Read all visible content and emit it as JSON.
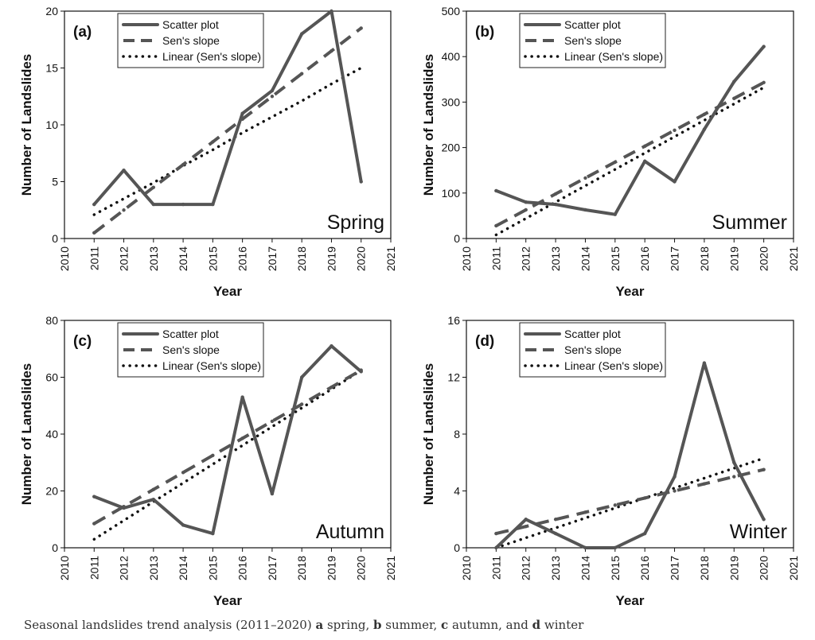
{
  "chart_data": [
    {
      "type": "line",
      "panel_label": "(a)",
      "season_label": "Spring",
      "xlabel": "Year",
      "ylabel": "Number of Landslides",
      "xlim": [
        2010,
        2021
      ],
      "ylim": [
        0,
        20
      ],
      "xticks": [
        "2010",
        "2011",
        "2012",
        "2013",
        "2014",
        "2015",
        "2016",
        "2017",
        "2018",
        "2019",
        "2020",
        "2021"
      ],
      "yticks": [
        "0",
        "5",
        "10",
        "15",
        "20"
      ],
      "x": [
        2011,
        2012,
        2013,
        2014,
        2015,
        2016,
        2017,
        2018,
        2019,
        2020
      ],
      "series": [
        {
          "name": "Scatter plot",
          "style": "solid",
          "values": [
            3,
            6,
            3,
            3,
            3,
            11,
            13,
            18,
            20,
            5
          ]
        },
        {
          "name": "Sen's slope",
          "style": "dashed",
          "values": [
            0.5,
            2.5,
            4.5,
            6.5,
            8.5,
            10.5,
            12.5,
            14.5,
            16.5,
            18.5
          ]
        },
        {
          "name": "Linear (Sen's slope)",
          "style": "dotted",
          "values": [
            2.1,
            3.5,
            4.9,
            6.4,
            7.8,
            9.3,
            10.7,
            12.1,
            13.6,
            15.0
          ]
        }
      ],
      "legend_position": "top-left"
    },
    {
      "type": "line",
      "panel_label": "(b)",
      "season_label": "Summer",
      "xlabel": "Year",
      "ylabel": "Number of Landslides",
      "xlim": [
        2010,
        2021
      ],
      "ylim": [
        0,
        500
      ],
      "xticks": [
        "2010",
        "2011",
        "2012",
        "2013",
        "2014",
        "2015",
        "2016",
        "2017",
        "2018",
        "2019",
        "2020",
        "2021"
      ],
      "yticks": [
        "0",
        "100",
        "200",
        "300",
        "400",
        "500"
      ],
      "x": [
        2011,
        2012,
        2013,
        2014,
        2015,
        2016,
        2017,
        2018,
        2019,
        2020
      ],
      "series": [
        {
          "name": "Scatter plot",
          "style": "solid",
          "values": [
            105,
            80,
            75,
            63,
            53,
            170,
            125,
            240,
            345,
            422
          ]
        },
        {
          "name": "Sen's slope",
          "style": "dashed",
          "values": [
            28,
            63,
            98,
            133,
            168,
            203,
            238,
            273,
            308,
            343
          ]
        },
        {
          "name": "Linear (Sen's slope)",
          "style": "dotted",
          "values": [
            8,
            44,
            80,
            116,
            152,
            188,
            224,
            260,
            296,
            332
          ]
        }
      ],
      "legend_position": "top-left"
    },
    {
      "type": "line",
      "panel_label": "(c)",
      "season_label": "Autumn",
      "xlabel": "Year",
      "ylabel": "Number of Landslides",
      "xlim": [
        2010,
        2021
      ],
      "ylim": [
        0,
        80
      ],
      "xticks": [
        "2010",
        "2011",
        "2012",
        "2013",
        "2014",
        "2015",
        "2016",
        "2017",
        "2018",
        "2019",
        "2020",
        "2021"
      ],
      "yticks": [
        "0",
        "20",
        "40",
        "60",
        "80"
      ],
      "x": [
        2011,
        2012,
        2013,
        2014,
        2015,
        2016,
        2017,
        2018,
        2019,
        2020
      ],
      "series": [
        {
          "name": "Scatter plot",
          "style": "solid",
          "values": [
            18,
            14,
            17,
            8,
            5,
            53,
            19,
            60,
            71,
            62
          ]
        },
        {
          "name": "Sen's slope",
          "style": "dashed",
          "values": [
            8.5,
            14.5,
            20.5,
            26.5,
            32.5,
            38.5,
            44.5,
            50.5,
            56.5,
            62.5
          ]
        },
        {
          "name": "Linear (Sen's slope)",
          "style": "dotted",
          "values": [
            3,
            9.6,
            16.2,
            22.8,
            29.4,
            36,
            42.6,
            49.2,
            55.8,
            62.4
          ]
        }
      ],
      "legend_position": "top-left"
    },
    {
      "type": "line",
      "panel_label": "(d)",
      "season_label": "Winter",
      "xlabel": "Year",
      "ylabel": "Number of Landslides",
      "xlim": [
        2010,
        2021
      ],
      "ylim": [
        0,
        16
      ],
      "xticks": [
        "2010",
        "2011",
        "2012",
        "2013",
        "2014",
        "2015",
        "2016",
        "2017",
        "2018",
        "2019",
        "2020",
        "2021"
      ],
      "yticks": [
        "0",
        "4",
        "8",
        "12",
        "16"
      ],
      "x": [
        2011,
        2012,
        2013,
        2014,
        2015,
        2016,
        2017,
        2018,
        2019,
        2020
      ],
      "series": [
        {
          "name": "Scatter plot",
          "style": "solid",
          "values": [
            0,
            2,
            1,
            0,
            0,
            1,
            5,
            13,
            6,
            2
          ]
        },
        {
          "name": "Sen's slope",
          "style": "dashed",
          "values": [
            1,
            1.5,
            2,
            2.5,
            3,
            3.5,
            4,
            4.5,
            5,
            5.5
          ]
        },
        {
          "name": "Linear (Sen's slope)",
          "style": "dotted",
          "values": [
            0,
            0.7,
            1.4,
            2.1,
            2.8,
            3.5,
            4.2,
            4.9,
            5.6,
            6.3
          ]
        }
      ],
      "legend_position": "top-left"
    }
  ],
  "caption": {
    "prefix": "Seasonal landslides trend analysis (2011–2020) ",
    "a_letter": "a",
    "a_text": " spring, ",
    "b_letter": "b",
    "b_text": " summer, ",
    "c_letter": "c",
    "c_text": " autumn, and ",
    "d_letter": "d",
    "d_text": " winter"
  },
  "colors": {
    "series": "#555555",
    "linear": "#111111",
    "axis": "#111111"
  }
}
